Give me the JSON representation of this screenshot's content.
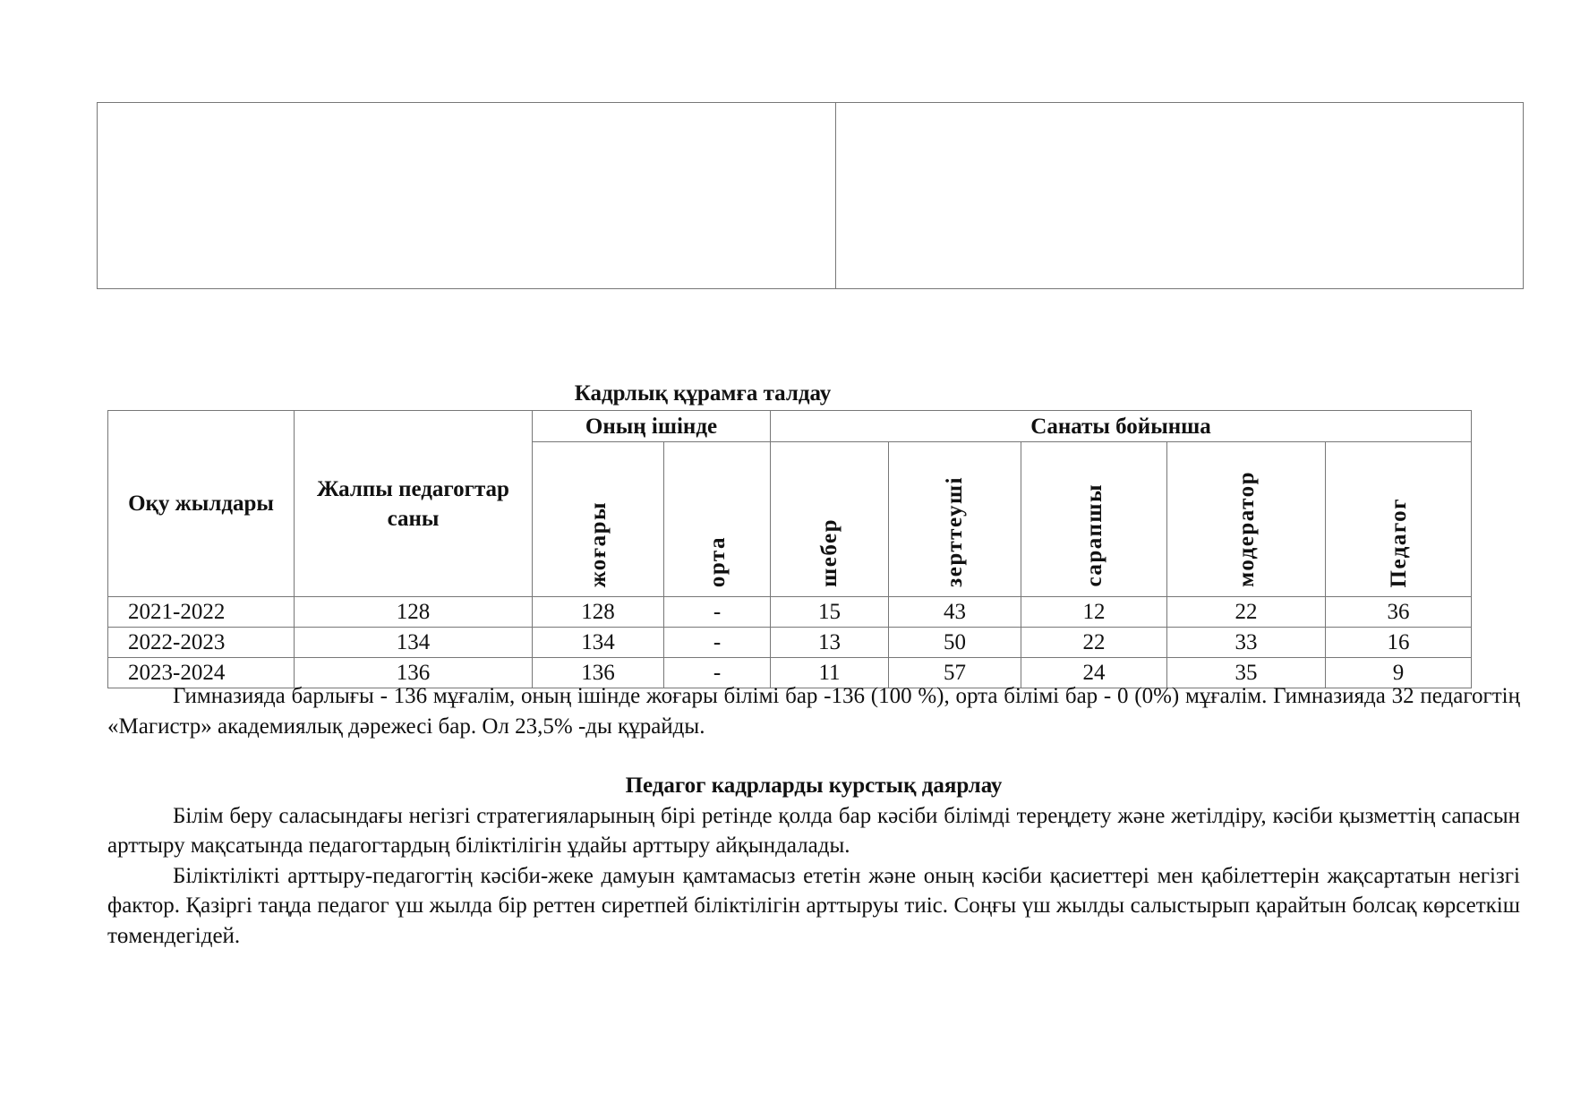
{
  "table_title": "Кадрлық құрамға талдау",
  "table": {
    "headers": {
      "years": "Оқу жылдары",
      "total": "Жалпы педагогтар саны",
      "of_which": "Оның ішінде",
      "by_category": "Санаты бойынша",
      "education": [
        "жоғары",
        "орта"
      ],
      "categories": [
        "шебер",
        "зерттеуші",
        "сарапшы",
        "модератор",
        "Педагог"
      ]
    },
    "rows": [
      {
        "year": "2021-2022",
        "total": "128",
        "higher": "128",
        "secondary": "-",
        "sheber": "15",
        "zertteushi": "43",
        "sarapshy": "12",
        "moderator": "22",
        "pedagog": "36"
      },
      {
        "year": "2022-2023",
        "total": "134",
        "higher": "134",
        "secondary": "-",
        "sheber": "13",
        "zertteushi": "50",
        "sarapshy": "22",
        "moderator": "33",
        "pedagog": "16"
      },
      {
        "year": "2023-2024",
        "total": "136",
        "higher": "136",
        "secondary": "-",
        "sheber": "11",
        "zertteushi": "57",
        "sarapshy": "24",
        "moderator": "35",
        "pedagog": "9"
      }
    ]
  },
  "paragraphs": {
    "p1": "Гимназияда барлығы - 136 мұғалім, оның ішінде жоғары білімі бар -136 (100 %), орта білімі бар - 0 (0%) мұғалім. Гимназияда 32 педагогтің «Магистр» академиялық дәрежесі бар. Ол 23,5% -ды құрайды.",
    "heading": "Педагог кадрларды курстық даярлау",
    "p2": "Білім беру саласындағы негізгі стратегияларының бірі ретінде қолда бар кәсіби білімді тереңдету және жетілдіру, кәсіби қызметтің сапасын арттыру мақсатында педагогтардың біліктілігін ұдайы арттыру айқындалады.",
    "p3": "Біліктілікті арттыру-педагогтің кәсіби-жеке дамуын қамтамасыз ететін және оның кәсіби қасиеттері мен қабілеттерін жақсартатын негізгі фактор. Қазіргі таңда педагог үш жылда бір реттен сиретпей біліктілігін арттыруы тиіс. Соңғы үш жылды салыстырып қарайтын болсақ көрсеткіш төмендегідей."
  }
}
